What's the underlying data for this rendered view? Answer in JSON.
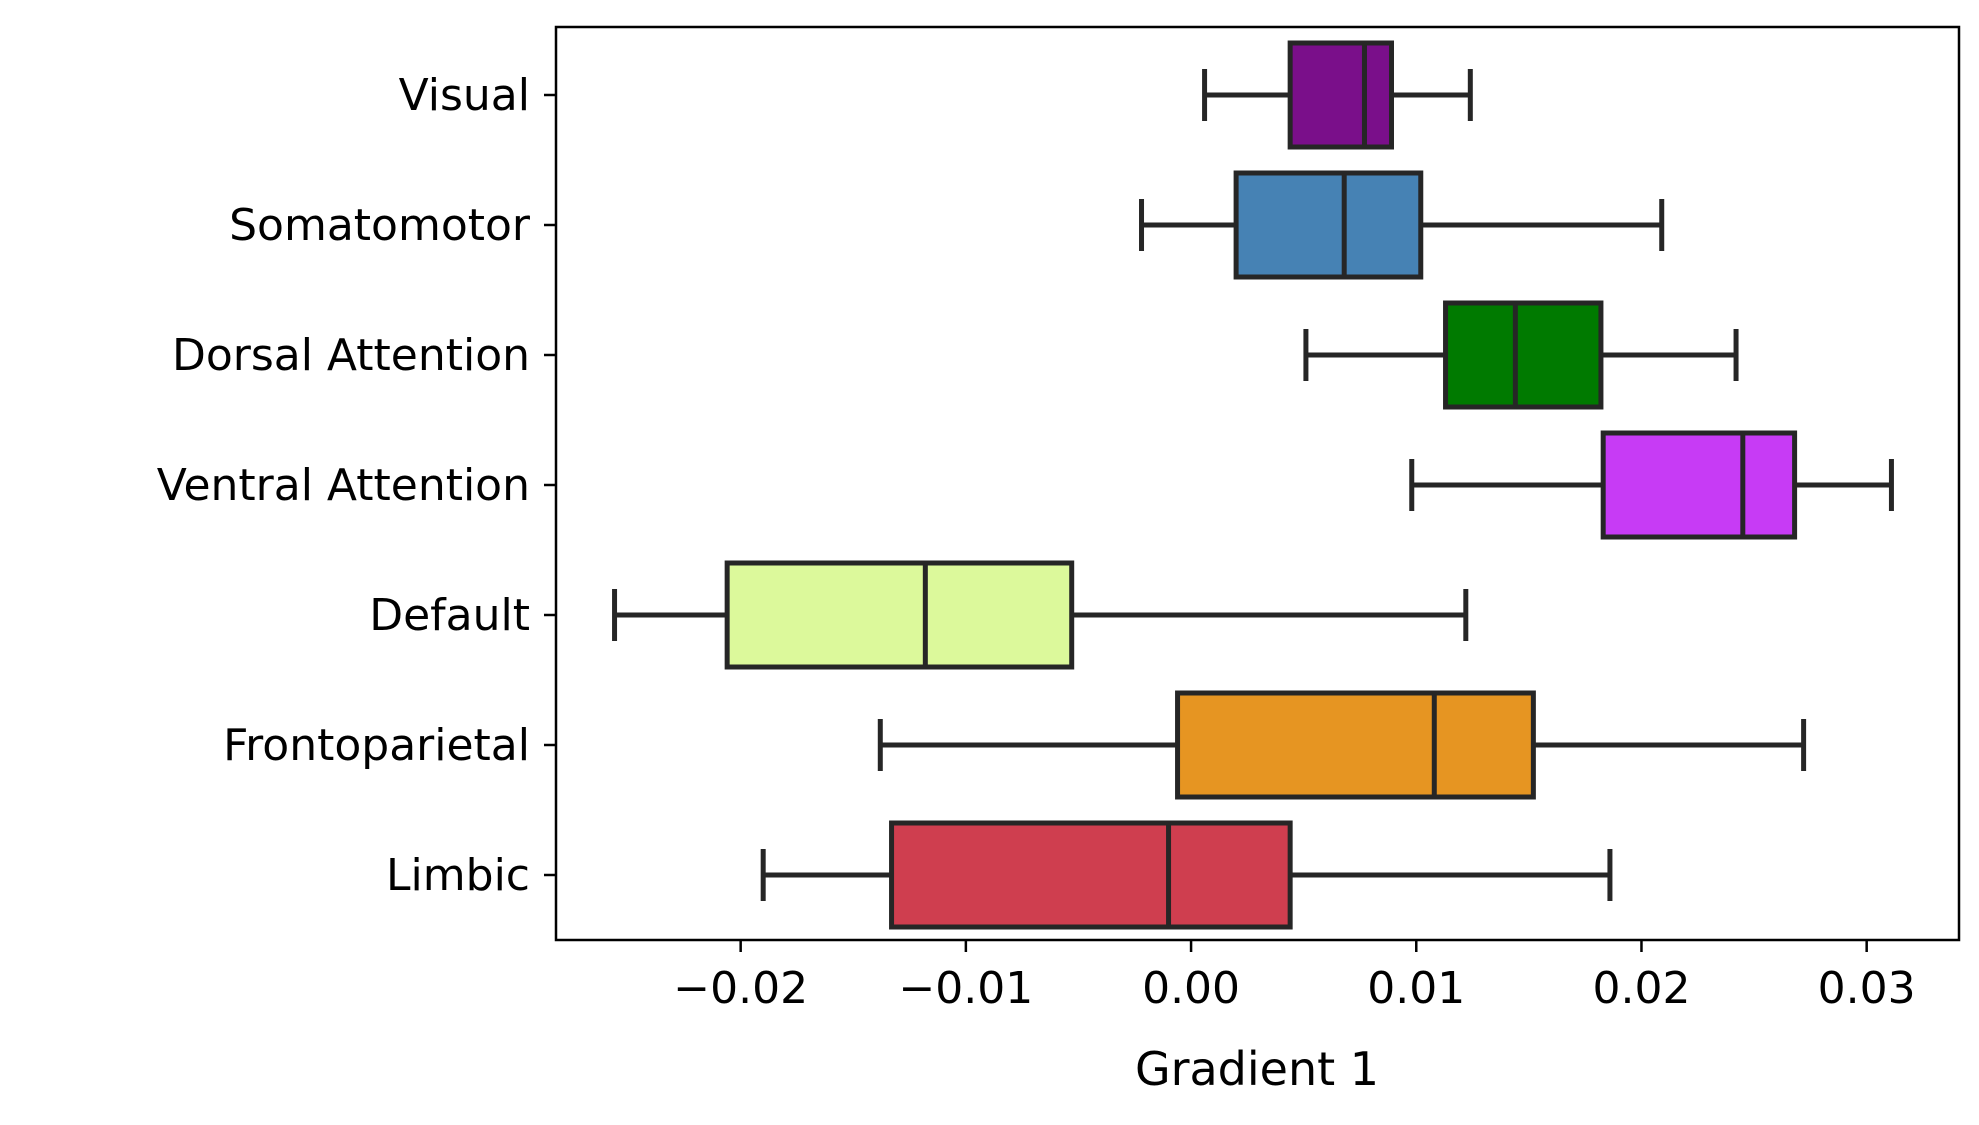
{
  "chart_data": {
    "type": "boxplot",
    "orientation": "horizontal",
    "xlabel": "Gradient 1",
    "ylabel": "",
    "xlim": [
      -0.0282,
      0.0341
    ],
    "xticks": [
      -0.02,
      -0.01,
      0.0,
      0.01,
      0.02,
      0.03
    ],
    "xtick_labels": [
      "−0.02",
      "−0.01",
      "0.00",
      "0.01",
      "0.02",
      "0.03"
    ],
    "grid": false,
    "legend": "none",
    "categories": [
      "Visual",
      "Somatomotor",
      "Dorsal Attention",
      "Ventral Attention",
      "Default",
      "Frontoparietal",
      "Limbic"
    ],
    "boxes": [
      {
        "category": "Visual",
        "whisker_low": 0.0006,
        "q1": 0.0044,
        "median": 0.0077,
        "q3": 0.0089,
        "whisker_high": 0.0124,
        "color": "#7a0f8a"
      },
      {
        "category": "Somatomotor",
        "whisker_low": -0.0022,
        "q1": 0.002,
        "median": 0.0068,
        "q3": 0.0102,
        "whisker_high": 0.0209,
        "color": "#4682b4"
      },
      {
        "category": "Dorsal Attention",
        "whisker_low": 0.0051,
        "q1": 0.0113,
        "median": 0.0144,
        "q3": 0.0182,
        "whisker_high": 0.0242,
        "color": "#007a00"
      },
      {
        "category": "Ventral Attention",
        "whisker_low": 0.0098,
        "q1": 0.0183,
        "median": 0.0245,
        "q3": 0.0268,
        "whisker_high": 0.0311,
        "color": "#c73bf5"
      },
      {
        "category": "Default",
        "whisker_low": -0.0256,
        "q1": -0.0206,
        "median": -0.0118,
        "q3": -0.0053,
        "whisker_high": 0.0122,
        "color": "#dcf99b"
      },
      {
        "category": "Frontoparietal",
        "whisker_low": -0.0138,
        "q1": -0.0006,
        "median": 0.0108,
        "q3": 0.0152,
        "whisker_high": 0.0272,
        "color": "#e69522"
      },
      {
        "category": "Limbic",
        "whisker_low": -0.019,
        "q1": -0.0133,
        "median": -0.001,
        "q3": 0.0044,
        "whisker_high": 0.0186,
        "color": "#cf3e4f"
      }
    ]
  }
}
